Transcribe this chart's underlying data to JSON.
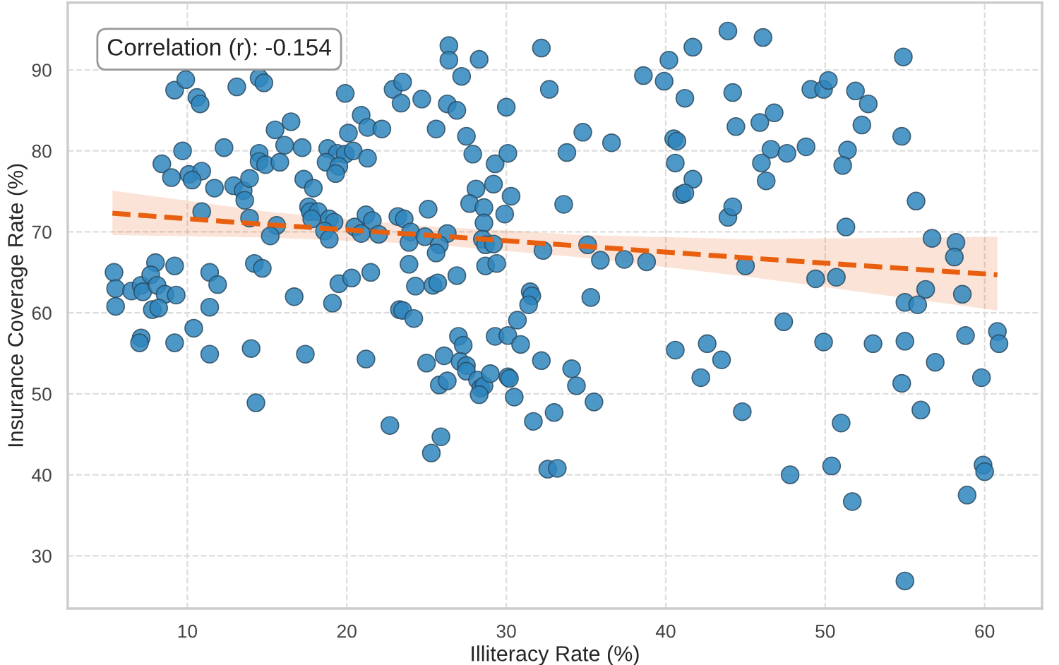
{
  "chart_data": {
    "type": "scatter",
    "xlabel": "Illiteracy Rate (%)",
    "ylabel": "Insurance Coverage Rate (%)",
    "annotations": [
      "Correlation (r): -0.154"
    ],
    "xlim": [
      2.5,
      63.6
    ],
    "ylim": [
      23.5,
      98.3
    ],
    "xticks": [
      10,
      20,
      30,
      40,
      50,
      60
    ],
    "yticks": [
      30,
      40,
      50,
      60,
      70,
      80,
      90
    ],
    "grid": true,
    "marker": "circle",
    "series": [
      {
        "color": "#2f86bd",
        "x": [
          9.2,
          9.9,
          10.6,
          10.8,
          13.1,
          14.5,
          14.8,
          19.9,
          22.9,
          23.5,
          23.4,
          20.9,
          20.1,
          21.3,
          22.2,
          16.5,
          15.5,
          16.1,
          17.2,
          12.3,
          9.7,
          8.4,
          9.0,
          10.1,
          10.9,
          10.3,
          11.7,
          12.9,
          13.5,
          13.9,
          13.6,
          14.5,
          14.5,
          14.9,
          15.8,
          18.8,
          19.4,
          19.9,
          20.4,
          21.3,
          18.7,
          19.5,
          19.3,
          17.3,
          17.9,
          10.9,
          13.9,
          15.6,
          15.2,
          17.6,
          17.7,
          18.2,
          17.8,
          18.9,
          19.2,
          18.6,
          18.9,
          20.5,
          20.9,
          21.2,
          21.6,
          22.0,
          23.2,
          23.6,
          5.4,
          5.5,
          5.5,
          6.5,
          7.1,
          7.2,
          8.0,
          7.7,
          8.1,
          8.6,
          9.3,
          9.2,
          7.8,
          8.2,
          11.4,
          11.9,
          11.4,
          14.2,
          14.7,
          16.7,
          19.5,
          20.3,
          21.5,
          19.1,
          23.3,
          7.1,
          7.0,
          9.2,
          10.4,
          11.4,
          14.0,
          17.4,
          21.2,
          14.3,
          22.7,
          26.4,
          26.4,
          28.3,
          27.2,
          24.7,
          26.3,
          26.9,
          30.0,
          32.2,
          32.7,
          25.6,
          27.5,
          27.9,
          29.3,
          30.1,
          28.1,
          29.2,
          27.7,
          28.6,
          30.3,
          29.9,
          28.6,
          25.1,
          24.0,
          23.9,
          24.9,
          26.3,
          25.8,
          25.6,
          28.5,
          28.7,
          29.2,
          23.9,
          28.7,
          29.4,
          26.9,
          24.3,
          25.4,
          25.7,
          23.5,
          24.2,
          31.5,
          31.6,
          31.4,
          30.7,
          35.3,
          32.3,
          35.1,
          35.9,
          37.4,
          38.8,
          33.6,
          33.8,
          34.8,
          36.6,
          38.6,
          39.9,
          40.2,
          41.7,
          43.9,
          41.2,
          40.5,
          40.7,
          40.6,
          41.7,
          41.0,
          41.2,
          43.9,
          44.2,
          44.2,
          44.4,
          46.1,
          54.9,
          45.9,
          46.8,
          46.6,
          47.6,
          48.8,
          46.0,
          46.3,
          49.1,
          49.9,
          50.2,
          51.9,
          52.7,
          52.3,
          51.4,
          51.1,
          54.8,
          55.7,
          51.3,
          56.7,
          58.2,
          58.1,
          45.0,
          49.4,
          50.7,
          56.3,
          58.6,
          55.0,
          55.8,
          47.4,
          27.0,
          27.3,
          29.3,
          30.1,
          30.9,
          26.1,
          25.0,
          27.1,
          27.5,
          27.5,
          25.8,
          26.3,
          28.2,
          28.4,
          28.6,
          28.3,
          29.0,
          30.1,
          30.2,
          30.5,
          32.2,
          34.1,
          34.4,
          35.5,
          31.7,
          33.0,
          25.9,
          25.3,
          32.6,
          33.2,
          40.6,
          42.6,
          43.5,
          42.2,
          49.9,
          53.0,
          55.0,
          58.8,
          60.8,
          60.9,
          56.9,
          54.8,
          59.8,
          44.8,
          51.0,
          56.0,
          50.4,
          47.8,
          59.9,
          60.0,
          51.7,
          58.9,
          55.0
        ],
        "values": [
          87.5,
          88.8,
          86.6,
          85.8,
          87.9,
          89.0,
          88.4,
          87.1,
          87.6,
          88.5,
          85.9,
          84.4,
          82.2,
          82.9,
          82.7,
          83.6,
          82.6,
          80.7,
          80.4,
          80.4,
          80.0,
          78.4,
          76.7,
          77.1,
          77.5,
          76.4,
          75.4,
          75.7,
          75.1,
          76.6,
          73.9,
          79.7,
          78.7,
          78.3,
          78.6,
          80.3,
          79.7,
          79.6,
          80.0,
          79.1,
          78.6,
          78.1,
          77.2,
          76.5,
          75.4,
          72.5,
          71.7,
          70.8,
          69.5,
          73.1,
          72.5,
          72.5,
          71.6,
          71.6,
          71.2,
          70.1,
          69.1,
          70.6,
          69.8,
          72.1,
          71.4,
          69.7,
          71.9,
          71.6,
          65.0,
          63.0,
          60.8,
          62.7,
          63.4,
          62.6,
          66.2,
          64.7,
          63.4,
          62.3,
          62.2,
          65.8,
          60.4,
          60.6,
          65.0,
          63.5,
          60.7,
          66.1,
          65.5,
          62.0,
          63.6,
          64.3,
          65.0,
          61.2,
          60.4,
          56.9,
          56.3,
          56.3,
          58.1,
          54.9,
          55.6,
          54.9,
          54.3,
          48.9,
          46.1,
          93.0,
          91.2,
          91.3,
          89.2,
          86.4,
          85.8,
          85.0,
          85.4,
          92.7,
          87.6,
          82.7,
          81.8,
          79.6,
          78.4,
          79.7,
          75.3,
          75.9,
          73.5,
          73.0,
          74.4,
          72.2,
          71.1,
          72.8,
          70.0,
          68.7,
          69.4,
          69.8,
          68.4,
          67.4,
          69.1,
          68.4,
          68.5,
          66.0,
          65.8,
          66.1,
          64.6,
          63.3,
          63.4,
          63.7,
          60.3,
          59.3,
          62.6,
          62.1,
          61.0,
          59.1,
          61.9,
          67.7,
          68.4,
          66.5,
          66.6,
          66.3,
          73.4,
          79.8,
          82.3,
          81.0,
          89.3,
          88.6,
          91.2,
          92.8,
          94.8,
          86.5,
          81.5,
          81.2,
          78.5,
          76.5,
          74.6,
          74.8,
          71.8,
          73.1,
          87.2,
          83.0,
          94.0,
          91.6,
          83.5,
          84.7,
          80.2,
          79.7,
          80.5,
          78.5,
          76.3,
          87.6,
          87.6,
          88.7,
          87.4,
          85.8,
          83.2,
          80.1,
          78.2,
          81.8,
          73.8,
          70.6,
          69.2,
          68.7,
          66.9,
          65.8,
          64.2,
          64.4,
          62.9,
          62.3,
          61.3,
          61.0,
          58.9,
          57.1,
          56.0,
          57.1,
          57.2,
          56.1,
          54.7,
          53.8,
          54.0,
          53.5,
          52.8,
          51.1,
          51.6,
          51.7,
          50.7,
          51.0,
          49.9,
          52.5,
          52.1,
          51.9,
          49.6,
          54.1,
          53.1,
          51.0,
          49.0,
          46.6,
          47.7,
          44.7,
          42.7,
          40.7,
          40.8,
          55.4,
          56.2,
          54.2,
          52.0,
          56.4,
          56.2,
          56.5,
          57.2,
          57.7,
          56.2,
          53.9,
          51.3,
          52.0,
          47.8,
          46.4,
          48.0,
          41.1,
          40.0,
          41.2,
          40.4,
          36.7,
          37.5,
          26.9
        ]
      },
      {
        "type": "line",
        "color": "#e8600f",
        "line_style": "dashed",
        "marker": "none",
        "x": [
          5.3,
          15,
          25,
          35,
          45,
          60.8
        ],
        "values": [
          72.3,
          70.9,
          69.6,
          68.2,
          66.8,
          64.7
        ],
        "lower": [
          69.6,
          69.3,
          68.5,
          66.8,
          64.5,
          60.3
        ],
        "upper": [
          75.1,
          72.5,
          70.7,
          69.6,
          69.1,
          69.4
        ]
      }
    ]
  }
}
